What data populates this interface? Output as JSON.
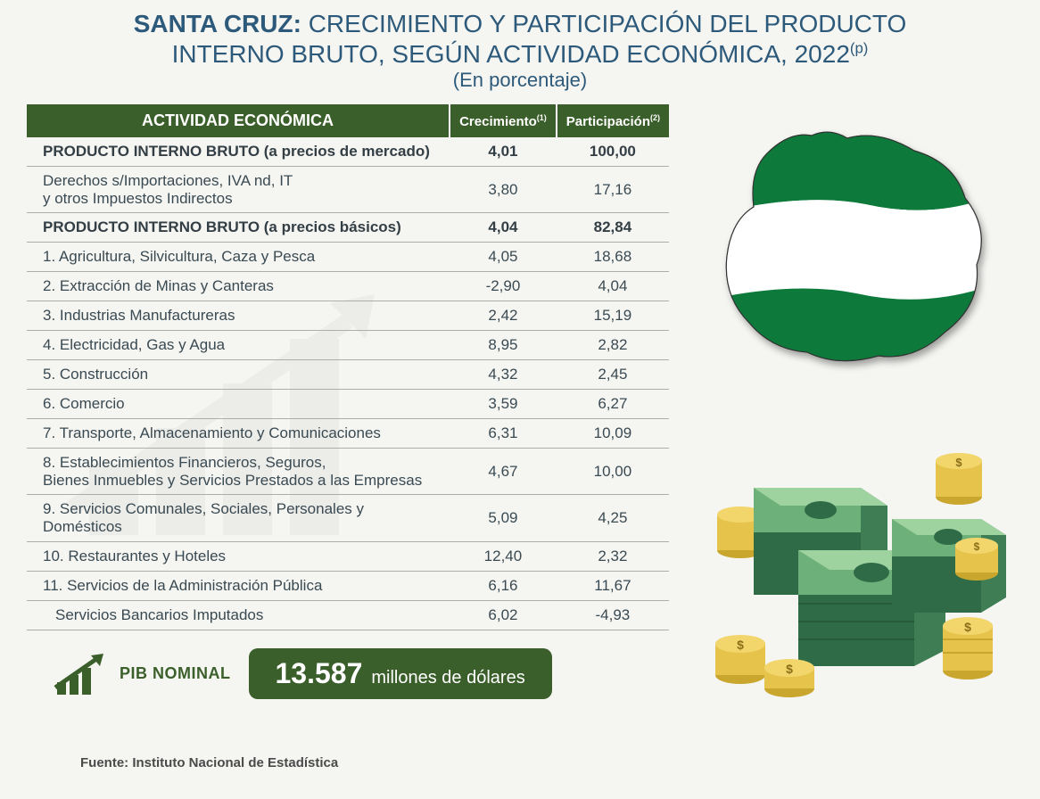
{
  "title": {
    "prefix_bold": "SANTA CRUZ:",
    "line1_rest": " CRECIMIENTO Y PARTICIPACIÓN DEL PRODUCTO",
    "line2": "INTERNO BRUTO, SEGÚN ACTIVIDAD ECONÓMICA, 2022",
    "sup": "(p)",
    "subtitle": "(En porcentaje)"
  },
  "table": {
    "headers": {
      "activity": "ACTIVIDAD  ECONÓMICA",
      "growth": "Crecimiento",
      "growth_sup": "(1)",
      "share": "Participación",
      "share_sup": "(2)"
    },
    "rows": [
      {
        "activity": "PRODUCTO INTERNO BRUTO (a precios de mercado)",
        "growth": "4,01",
        "share": "100,00",
        "bold": true
      },
      {
        "activity": "Derechos s/Importaciones, IVA nd, IT\ny otros Impuestos Indirectos",
        "growth": "3,80",
        "share": "17,16",
        "multiline": true
      },
      {
        "activity": "PRODUCTO INTERNO BRUTO (a precios básicos)",
        "growth": "4,04",
        "share": "82,84",
        "bold": true
      },
      {
        "activity": "1. Agricultura, Silvicultura, Caza y Pesca",
        "growth": "4,05",
        "share": "18,68"
      },
      {
        "activity": "2. Extracción de Minas y Canteras",
        "growth": "-2,90",
        "share": "4,04"
      },
      {
        "activity": "3. Industrias Manufactureras",
        "growth": "2,42",
        "share": "15,19"
      },
      {
        "activity": "4. Electricidad, Gas y Agua",
        "growth": "8,95",
        "share": "2,82"
      },
      {
        "activity": "5. Construcción",
        "growth": "4,32",
        "share": "2,45"
      },
      {
        "activity": "6. Comercio",
        "growth": "3,59",
        "share": "6,27"
      },
      {
        "activity": "7. Transporte, Almacenamiento y Comunicaciones",
        "growth": "6,31",
        "share": "10,09"
      },
      {
        "activity": "8. Establecimientos Financieros, Seguros,\n    Bienes Inmuebles y Servicios Prestados a las Empresas",
        "growth": "4,67",
        "share": "10,00",
        "multiline": true
      },
      {
        "activity": "9. Servicios Comunales, Sociales, Personales y Domésticos",
        "growth": "5,09",
        "share": "4,25"
      },
      {
        "activity": "10. Restaurantes y Hoteles",
        "growth": "12,40",
        "share": "2,32"
      },
      {
        "activity": "11. Servicios de la Administración Pública",
        "growth": "6,16",
        "share": "11,67"
      },
      {
        "activity": "Servicios Bancarios Imputados",
        "growth": "6,02",
        "share": "-4,93",
        "indent": true
      }
    ]
  },
  "pib_nominal": {
    "label": "PIB NOMINAL",
    "value": "13.587",
    "unit": "millones de dólares"
  },
  "source": "Fuente: Instituto Nacional de Estadística",
  "colors": {
    "header_bg": "#3b5f2a",
    "title_color": "#2d5a7a",
    "text_color": "#3a4a52",
    "row_border": "#aab0a8",
    "flag_green": "#0a7a3a",
    "flag_white": "#ffffff",
    "money_green_dark": "#2f6b46",
    "money_green_light": "#9ed29f",
    "coin_gold": "#e6c34a",
    "coin_gold_dark": "#c9a62d"
  }
}
